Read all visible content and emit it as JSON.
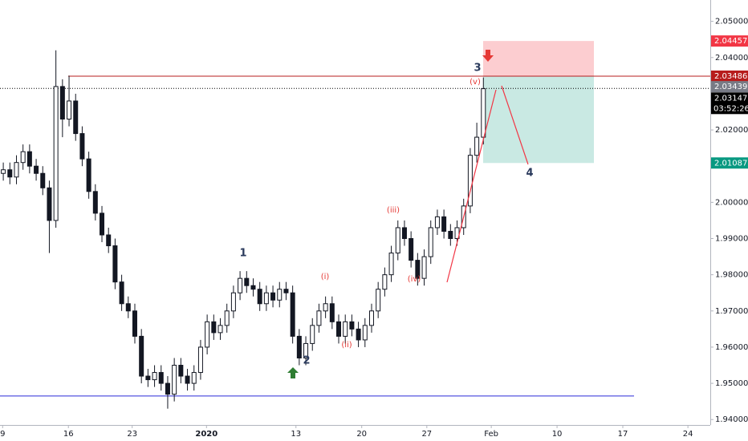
{
  "chart_data": {
    "type": "candlestick",
    "x": [
      0.5,
      1.5,
      2.5,
      3.5,
      4.5,
      5.5,
      6.5,
      7.5,
      8.5,
      9.5,
      10.5,
      11.5,
      12.5,
      13.5,
      14.5,
      15.5,
      16.5,
      17.5,
      18.5,
      19.5,
      20.5,
      21.5,
      22.5,
      23.5,
      24.5,
      25.5,
      26.5,
      27.5,
      28.5,
      29.5,
      30.5,
      31.5,
      32.5,
      33.5,
      34.5,
      35.5,
      36.5,
      37.5,
      38.5,
      39.5,
      40.5,
      41.5,
      42.5,
      43.5,
      44.5,
      45.5,
      46.5,
      47.5,
      48.5,
      49.5,
      50.5,
      51.5,
      52.5,
      53.5,
      54.5,
      55.5,
      56.5,
      57.5,
      58.5,
      59.5,
      60.5,
      61.5,
      62.5,
      63.5,
      64.5,
      65.5,
      66.5,
      67.5,
      68.5,
      69.5,
      70.5,
      71.5,
      72.5,
      73.5
    ],
    "open": [
      2.008,
      2.009,
      2.007,
      2.011,
      2.014,
      2.01,
      2.008,
      2.004,
      1.995,
      2.032,
      2.023,
      2.028,
      2.019,
      2.012,
      2.003,
      1.997,
      1.991,
      1.988,
      1.978,
      1.972,
      1.97,
      1.963,
      1.952,
      1.951,
      1.953,
      1.95,
      1.947,
      1.955,
      1.952,
      1.95,
      1.953,
      1.96,
      1.967,
      1.964,
      1.966,
      1.97,
      1.975,
      1.979,
      1.977,
      1.976,
      1.972,
      1.975,
      1.973,
      1.976,
      1.975,
      1.963,
      1.957,
      1.961,
      1.966,
      1.97,
      1.972,
      1.967,
      1.963,
      1.967,
      1.965,
      1.962,
      1.966,
      1.97,
      1.976,
      1.98,
      1.986,
      1.993,
      1.99,
      1.984,
      1.979,
      1.985,
      1.993,
      1.996,
      1.992,
      1.99,
      1.993,
      1.999,
      2.013,
      2.018
    ],
    "high": [
      2.011,
      2.011,
      2.013,
      2.016,
      2.016,
      2.012,
      2.01,
      2.006,
      2.042,
      2.034,
      2.035,
      2.03,
      2.021,
      2.014,
      2.005,
      1.999,
      1.993,
      1.99,
      1.98,
      1.974,
      1.972,
      1.965,
      1.954,
      1.955,
      1.955,
      1.952,
      1.957,
      1.957,
      1.954,
      1.955,
      1.962,
      1.969,
      1.969,
      1.968,
      1.972,
      1.977,
      1.981,
      1.981,
      1.979,
      1.978,
      1.977,
      1.977,
      1.978,
      1.978,
      1.977,
      1.965,
      1.963,
      1.968,
      1.972,
      1.974,
      1.974,
      1.969,
      1.969,
      1.969,
      1.967,
      1.968,
      1.972,
      1.978,
      1.982,
      1.988,
      1.995,
      1.995,
      1.992,
      1.986,
      1.987,
      1.995,
      1.998,
      1.998,
      1.994,
      1.995,
      2.001,
      2.015,
      2.022,
      2.0345
    ],
    "low": [
      2.006,
      2.005,
      2.005,
      2.009,
      2.008,
      2.006,
      2.002,
      1.986,
      1.993,
      2.018,
      2.021,
      2.017,
      2.01,
      2.001,
      1.995,
      1.989,
      1.986,
      1.976,
      1.97,
      1.968,
      1.961,
      1.95,
      1.949,
      1.949,
      1.948,
      1.943,
      1.945,
      1.95,
      1.948,
      1.948,
      1.951,
      1.958,
      1.962,
      1.962,
      1.964,
      1.968,
      1.973,
      1.975,
      1.974,
      1.97,
      1.97,
      1.971,
      1.971,
      1.973,
      1.961,
      1.955,
      1.955,
      1.959,
      1.964,
      1.968,
      1.965,
      1.961,
      1.961,
      1.963,
      1.96,
      1.96,
      1.964,
      1.968,
      1.974,
      1.978,
      1.984,
      1.988,
      1.982,
      1.977,
      1.977,
      1.983,
      1.991,
      1.99,
      1.988,
      1.988,
      1.991,
      1.997,
      2.011,
      2.016
    ],
    "close": [
      2.009,
      2.007,
      2.011,
      2.014,
      2.01,
      2.008,
      2.004,
      1.995,
      2.032,
      2.023,
      2.028,
      2.019,
      2.012,
      2.003,
      1.997,
      1.991,
      1.988,
      1.978,
      1.972,
      1.97,
      1.963,
      1.952,
      1.951,
      1.953,
      1.95,
      1.947,
      1.955,
      1.952,
      1.95,
      1.953,
      1.96,
      1.967,
      1.964,
      1.966,
      1.97,
      1.975,
      1.979,
      1.977,
      1.976,
      1.972,
      1.975,
      1.973,
      1.976,
      1.975,
      1.963,
      1.957,
      1.961,
      1.966,
      1.97,
      1.972,
      1.967,
      1.963,
      1.967,
      1.965,
      1.962,
      1.966,
      1.97,
      1.976,
      1.98,
      1.986,
      1.993,
      1.99,
      1.984,
      1.979,
      1.985,
      1.993,
      1.996,
      1.992,
      1.99,
      1.993,
      1.999,
      2.013,
      2.018,
      2.0314
    ],
    "color": "#131722",
    "xlim": [
      0,
      108
    ],
    "xticks": [
      {
        "value": 0.4,
        "label": "9"
      },
      {
        "value": 10.4,
        "label": "16"
      },
      {
        "value": 20.1,
        "label": "23"
      },
      {
        "value": 31.4,
        "label": "2020"
      },
      {
        "value": 45,
        "label": "13"
      },
      {
        "value": 55,
        "label": "20"
      },
      {
        "value": 64.9,
        "label": "27"
      },
      {
        "value": 74.7,
        "label": "Feb"
      },
      {
        "value": 84.7,
        "label": "10"
      },
      {
        "value": 94.7,
        "label": "17"
      },
      {
        "value": 104.6,
        "label": "24"
      }
    ],
    "ylim": [
      1.9385,
      2.0559
    ],
    "yticks": [
      {
        "value": 1.94,
        "label": "1.94000"
      },
      {
        "value": 1.95,
        "label": "1.95000"
      },
      {
        "value": 1.96,
        "label": "1.96000"
      },
      {
        "value": 1.97,
        "label": "1.97000"
      },
      {
        "value": 1.98,
        "label": "1.98000"
      },
      {
        "value": 1.99,
        "label": "1.99000"
      },
      {
        "value": 2.0,
        "label": "2.00000"
      },
      {
        "value": 2.02,
        "label": "2.02000"
      },
      {
        "value": 2.04,
        "label": "2.04000"
      },
      {
        "value": 2.05,
        "label": "2.05000"
      }
    ],
    "stop_loss": 2.04457,
    "stop_color": "#f23645",
    "entry": 2.03486,
    "entry_color": "#b71c1c",
    "marker_price": 2.03439,
    "marker_color": "#787b86",
    "last_price": 2.03147,
    "last_color": "#000000",
    "countdown": "03:52:26",
    "take_profit": 2.01087,
    "target_color": "#089981",
    "support": 1.9465,
    "support_color": "#2b2bd6",
    "wave_labels": [
      "1",
      "2",
      "3",
      "4",
      "(i)",
      "(ii)",
      "(iii)",
      "(iv)",
      "(v)"
    ]
  }
}
